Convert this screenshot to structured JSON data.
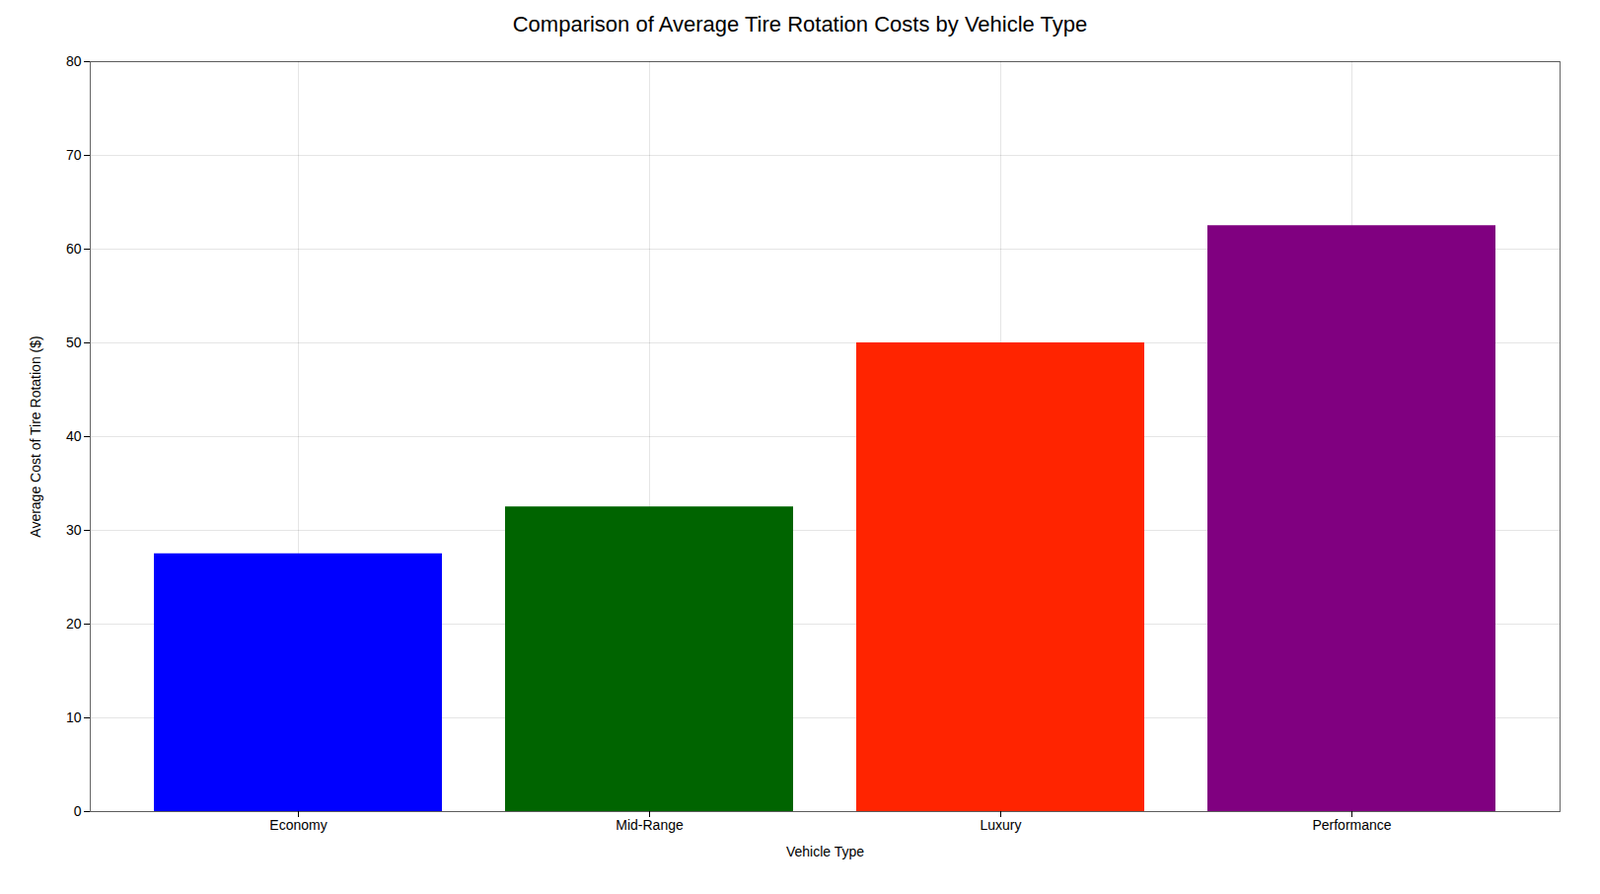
{
  "chart_data": {
    "type": "bar",
    "title": "Comparison of Average Tire Rotation Costs by Vehicle Type",
    "xlabel": "Vehicle Type",
    "ylabel": "Average Cost of Tire Rotation ($)",
    "categories": [
      "Economy",
      "Mid-Range",
      "Luxury",
      "Performance"
    ],
    "values": [
      27.5,
      32.5,
      50.0,
      62.5
    ],
    "colors": [
      "#0000ff",
      "#006400",
      "#ff2400",
      "#800080"
    ],
    "ylim": [
      0,
      80
    ],
    "yticks": [
      0,
      10,
      20,
      30,
      40,
      50,
      60,
      70,
      80
    ],
    "grid": true
  }
}
